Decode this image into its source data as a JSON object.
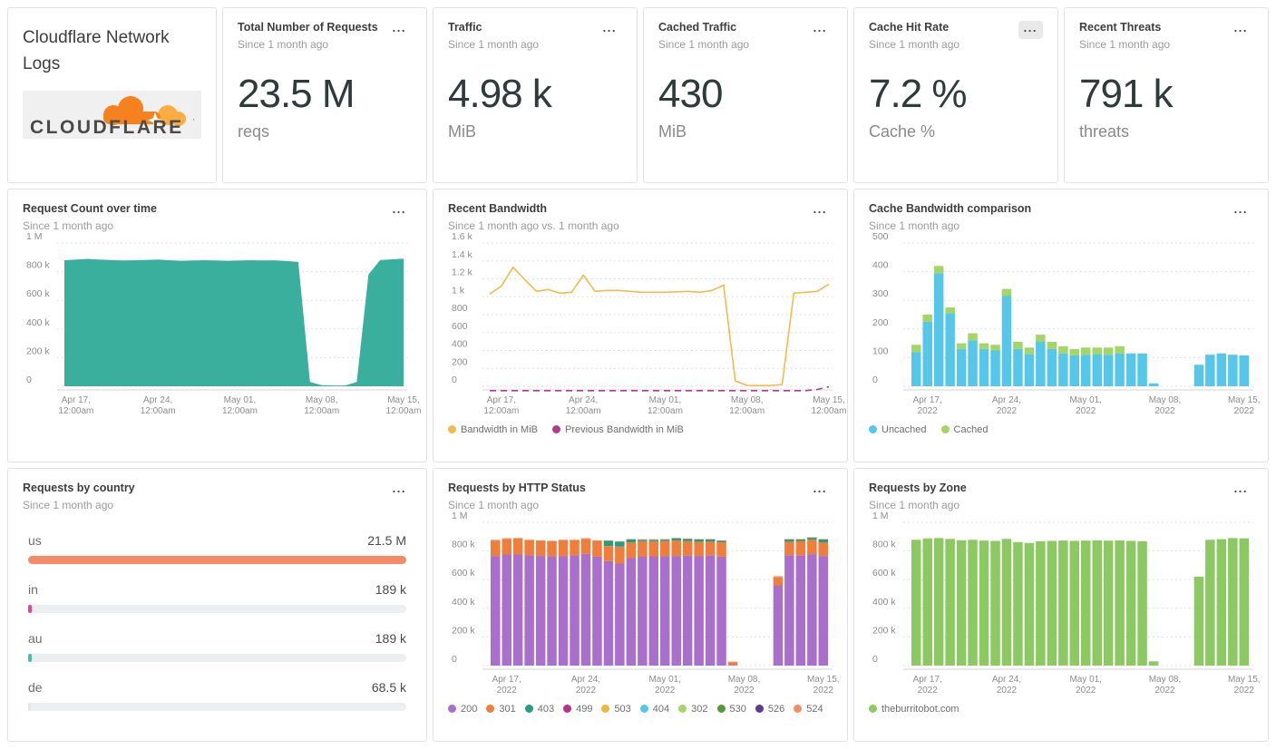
{
  "common": {
    "menu_label": "..."
  },
  "header_card": {
    "title": "Cloudflare Network Logs",
    "logo_text": "CLOUDFLARE",
    "logo_colors": {
      "cloud": "#f6821f",
      "cloud_light": "#fbad41",
      "text": "#4a4a4a",
      "bg": "#f0f0f0"
    }
  },
  "stat_cards": [
    {
      "title": "Total Number of Requests",
      "subtitle": "Since 1 month ago",
      "value": "23.5 M",
      "unit": "reqs"
    },
    {
      "title": "Traffic",
      "subtitle": "Since 1 month ago",
      "value": "4.98 k",
      "unit": "MiB"
    },
    {
      "title": "Cached Traffic",
      "subtitle": "Since 1 month ago",
      "value": "430",
      "unit": "MiB"
    },
    {
      "title": "Cache Hit Rate",
      "subtitle": "Since 1 month ago",
      "value": "7.2 %",
      "unit": "Cache %"
    },
    {
      "title": "Recent Threats",
      "subtitle": "Since 1 month ago",
      "value": "791 k",
      "unit": "threats"
    }
  ],
  "panels": {
    "request_count": {
      "title": "Request Count over time",
      "subtitle": "Since 1 month ago"
    },
    "bandwidth": {
      "title": "Recent Bandwidth",
      "subtitle": "Since 1 month ago vs. 1 month ago"
    },
    "cache_comparison": {
      "title": "Cache Bandwidth comparison",
      "subtitle": "Since 1 month ago"
    },
    "country": {
      "title": "Requests by country",
      "subtitle": "Since 1 month ago",
      "rows": [
        {
          "label": "us",
          "value": "21.5 M",
          "width": "100%",
          "color": "#f48a68"
        },
        {
          "label": "in",
          "value": "189 k",
          "width": "1%",
          "color": "#e8439b"
        },
        {
          "label": "au",
          "value": "189 k",
          "width": "1%",
          "color": "#41c1ad"
        },
        {
          "label": "de",
          "value": "68.5 k",
          "width": "0.6%",
          "color": "#dce8f2"
        }
      ]
    },
    "http_status": {
      "title": "Requests by HTTP Status",
      "subtitle": "Since 1 month ago"
    },
    "zone": {
      "title": "Requests by Zone",
      "subtitle": "Since 1 month ago"
    }
  },
  "chart_data": [
    {
      "id": "request_count",
      "type": "area",
      "title": "Request Count over time",
      "color": "#3aaf9d",
      "ylim": [
        0,
        1000
      ],
      "unit": "requests (thousands)",
      "yticks": [
        [
          1000,
          "1 M"
        ],
        [
          800,
          "800 k"
        ],
        [
          600,
          "600 k"
        ],
        [
          400,
          "400 k"
        ],
        [
          200,
          "200 k"
        ],
        [
          0,
          "0"
        ]
      ],
      "xticks": [
        [
          1,
          "Apr 17,",
          "12:00am"
        ],
        [
          8,
          "Apr 24,",
          "12:00am"
        ],
        [
          15,
          "May 01,",
          "12:00am"
        ],
        [
          22,
          "May 08,",
          "12:00am"
        ],
        [
          29,
          "May 15,",
          "12:00am"
        ]
      ],
      "x_range": "Apr 16 - May 15, daily",
      "values": [
        880,
        884,
        889,
        885,
        881,
        878,
        880,
        882,
        884,
        880,
        876,
        878,
        880,
        878,
        876,
        878,
        880,
        878,
        879,
        874,
        868,
        30,
        8,
        6,
        6,
        30,
        780,
        881,
        886,
        891
      ]
    },
    {
      "id": "bandwidth",
      "type": "line",
      "title": "Recent Bandwidth",
      "ylim": [
        0,
        1600
      ],
      "unit": "MiB",
      "yticks": [
        [
          1600,
          "1.6 k"
        ],
        [
          1400,
          "1.4 k"
        ],
        [
          1200,
          "1.2 k"
        ],
        [
          1000,
          "1 k"
        ],
        [
          800,
          "800"
        ],
        [
          600,
          "600"
        ],
        [
          400,
          "400"
        ],
        [
          200,
          "200"
        ],
        [
          0,
          "0"
        ]
      ],
      "xticks": [
        [
          1,
          "Apr 17,",
          "12:00am"
        ],
        [
          8,
          "Apr 24,",
          "12:00am"
        ],
        [
          15,
          "May 01,",
          "12:00am"
        ],
        [
          22,
          "May 08,",
          "12:00am"
        ],
        [
          29,
          "May 15,",
          "12:00am"
        ]
      ],
      "x_range": "Apr 16 - May 15, daily",
      "series": [
        {
          "name": "Bandwidth in MiB",
          "color": "#f3ba4d",
          "values": [
            1030,
            1120,
            1330,
            1190,
            1060,
            1080,
            1040,
            1050,
            1240,
            1060,
            1070,
            1070,
            1060,
            1050,
            1050,
            1050,
            1055,
            1060,
            1050,
            1070,
            1130,
            60,
            10,
            8,
            8,
            20,
            1040,
            1050,
            1060,
            1140
          ]
        },
        {
          "name": "Previous Bandwidth in MiB",
          "color": "#b03a8c",
          "dash": true,
          "y_offset": 5,
          "values": [
            2,
            2,
            2,
            2,
            2,
            2,
            2,
            2,
            2,
            2,
            2,
            2,
            2,
            2,
            2,
            2,
            2,
            2,
            2,
            2,
            2,
            2,
            2,
            2,
            2,
            2,
            2,
            2,
            15,
            45
          ]
        }
      ],
      "legend": [
        {
          "label": "Bandwidth in MiB",
          "color": "#f3ba4d"
        },
        {
          "label": "Previous Bandwidth in MiB",
          "color": "#b03a8c"
        }
      ]
    },
    {
      "id": "cache_comparison",
      "type": "stacked_bar",
      "title": "Cache Bandwidth comparison",
      "ylim": [
        0,
        500
      ],
      "unit": "MiB",
      "yticks": [
        [
          500,
          "500"
        ],
        [
          400,
          "400"
        ],
        [
          300,
          "300"
        ],
        [
          200,
          "200"
        ],
        [
          100,
          "100"
        ],
        [
          0,
          "0"
        ]
      ],
      "xticks": [
        [
          1,
          "Apr 17,",
          "2022"
        ],
        [
          8,
          "Apr 24,",
          "2022"
        ],
        [
          15,
          "May 01,",
          "2022"
        ],
        [
          22,
          "May 08,",
          "2022"
        ],
        [
          29,
          "May 15,",
          "2022"
        ]
      ],
      "x_range": "Apr 16 - May 15, daily",
      "series": [
        {
          "name": "Uncached",
          "color": "#57c7e9",
          "values": [
            120,
            225,
            395,
            255,
            130,
            160,
            130,
            125,
            315,
            130,
            112,
            155,
            130,
            115,
            108,
            110,
            112,
            110,
            115,
            115,
            115,
            10,
            0,
            0,
            0,
            75,
            110,
            115,
            110,
            108
          ]
        },
        {
          "name": "Cached",
          "color": "#a3d667",
          "values": [
            25,
            25,
            25,
            20,
            20,
            25,
            20,
            20,
            25,
            25,
            23,
            25,
            25,
            25,
            22,
            25,
            23,
            25,
            25,
            0,
            0,
            0,
            0,
            0,
            0,
            0,
            0,
            0,
            0,
            0
          ]
        }
      ],
      "legend": [
        {
          "label": "Uncached",
          "color": "#57c7e9"
        },
        {
          "label": "Cached",
          "color": "#a3d667"
        }
      ]
    },
    {
      "id": "country",
      "type": "bar_horizontal",
      "title": "Requests by country",
      "categories": [
        "us",
        "in",
        "au",
        "de"
      ],
      "values": [
        21500000,
        189000,
        189000,
        68500
      ],
      "labels": [
        "21.5 M",
        "189 k",
        "189 k",
        "68.5 k"
      ],
      "colors": [
        "#f48a68",
        "#e8439b",
        "#41c1ad",
        "#dce8f2"
      ]
    },
    {
      "id": "http_status",
      "type": "stacked_bar",
      "title": "Requests by HTTP Status",
      "ylim": [
        0,
        1000
      ],
      "unit": "requests (thousands)",
      "yticks": [
        [
          1000,
          "1 M"
        ],
        [
          800,
          "800 k"
        ],
        [
          600,
          "600 k"
        ],
        [
          400,
          "400 k"
        ],
        [
          200,
          "200 k"
        ],
        [
          0,
          "0"
        ]
      ],
      "xticks": [
        [
          1,
          "Apr 17,",
          "2022"
        ],
        [
          8,
          "Apr 24,",
          "2022"
        ],
        [
          15,
          "May 01,",
          "2022"
        ],
        [
          22,
          "May 08,",
          "2022"
        ],
        [
          29,
          "May 15,",
          "2022"
        ]
      ],
      "x_range": "Apr 16 - May 15, daily",
      "series": [
        {
          "name": "200",
          "color": "#a970cb",
          "values": [
            765,
            775,
            775,
            770,
            765,
            763,
            765,
            770,
            780,
            760,
            730,
            712,
            750,
            760,
            763,
            765,
            765,
            768,
            765,
            770,
            760,
            5,
            0,
            0,
            0,
            560,
            770,
            770,
            778,
            765
          ]
        },
        {
          "name": "301",
          "color": "#ef7d3b",
          "values": [
            108,
            110,
            112,
            105,
            105,
            104,
            110,
            105,
            103,
            110,
            105,
            118,
            110,
            108,
            105,
            104,
            108,
            100,
            100,
            95,
            100,
            18,
            0,
            0,
            0,
            58,
            95,
            100,
            100,
            95
          ]
        },
        {
          "name": "403",
          "color": "#259d85",
          "values": [
            0,
            0,
            0,
            0,
            0,
            0,
            0,
            0,
            0,
            0,
            35,
            35,
            20,
            10,
            10,
            10,
            15,
            15,
            15,
            15,
            10,
            0,
            0,
            0,
            0,
            0,
            15,
            10,
            14,
            20
          ]
        },
        {
          "name": "524",
          "color": "#f08f63",
          "values": [
            5,
            4,
            4,
            4,
            4,
            4,
            4,
            4,
            6,
            4,
            4,
            4,
            4,
            4,
            4,
            4,
            4,
            4,
            4,
            4,
            4,
            5,
            0,
            0,
            0,
            6,
            4,
            4,
            4,
            4
          ]
        }
      ],
      "legend": [
        {
          "label": "200",
          "color": "#a970cb"
        },
        {
          "label": "301",
          "color": "#ef7d3b"
        },
        {
          "label": "403",
          "color": "#259d85"
        },
        {
          "label": "499",
          "color": "#bb2e8c"
        },
        {
          "label": "503",
          "color": "#f0b63c"
        },
        {
          "label": "404",
          "color": "#57c7e9"
        },
        {
          "label": "302",
          "color": "#a3d667"
        },
        {
          "label": "530",
          "color": "#569b2f"
        },
        {
          "label": "526",
          "color": "#5f3b8f"
        },
        {
          "label": "524",
          "color": "#f08f63"
        }
      ]
    },
    {
      "id": "zone",
      "type": "stacked_bar",
      "title": "Requests by Zone",
      "ylim": [
        0,
        1000
      ],
      "unit": "requests (thousands)",
      "yticks": [
        [
          1000,
          "1 M"
        ],
        [
          800,
          "800 k"
        ],
        [
          600,
          "600 k"
        ],
        [
          400,
          "400 k"
        ],
        [
          200,
          "200 k"
        ],
        [
          0,
          "0"
        ]
      ],
      "xticks": [
        [
          1,
          "Apr 17,",
          "2022"
        ],
        [
          8,
          "Apr 24,",
          "2022"
        ],
        [
          15,
          "May 01,",
          "2022"
        ],
        [
          22,
          "May 08,",
          "2022"
        ],
        [
          29,
          "May 15,",
          "2022"
        ]
      ],
      "x_range": "Apr 16 - May 15, daily",
      "series": [
        {
          "name": "theburritobot.com",
          "color": "#8cc963",
          "values": [
            878,
            888,
            890,
            884,
            875,
            878,
            872,
            870,
            884,
            862,
            856,
            868,
            870,
            872,
            870,
            872,
            874,
            872,
            874,
            870,
            868,
            30,
            0,
            0,
            0,
            620,
            878,
            882,
            890,
            888
          ]
        }
      ],
      "legend": [
        {
          "label": "theburritobot.com",
          "color": "#8cc963"
        }
      ]
    }
  ]
}
